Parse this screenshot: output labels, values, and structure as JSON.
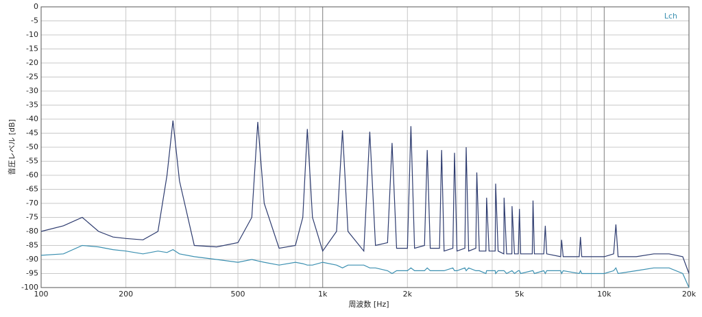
{
  "chart_data": {
    "type": "line",
    "xlabel": "周波数 [Hz]",
    "ylabel": "音圧レベル [dB]",
    "legend": "Lch",
    "legend_color": "#3a8fb0",
    "log_x": true,
    "grid": true,
    "xlim": [
      100,
      20000
    ],
    "ylim": [
      -100,
      0
    ],
    "xticks": [
      100,
      200,
      500,
      {
        "value": 1000,
        "label": "1k"
      },
      {
        "value": 2000,
        "label": "2k"
      },
      {
        "value": 5000,
        "label": "5k"
      },
      {
        "value": 10000,
        "label": "10k"
      },
      {
        "value": 20000,
        "label": "20k"
      }
    ],
    "xminorticks": [
      300,
      400,
      600,
      700,
      800,
      900,
      3000,
      4000,
      6000,
      7000,
      8000,
      9000
    ],
    "xmajorgrid": [
      1000,
      10000
    ],
    "yticks": [
      0,
      -5,
      -10,
      -15,
      -20,
      -25,
      -30,
      -35,
      -40,
      -45,
      -50,
      -55,
      -60,
      -65,
      -70,
      -75,
      -80,
      -85,
      -90,
      -95,
      -100
    ],
    "x": [
      100,
      120,
      140,
      160,
      180,
      200,
      230,
      260,
      280,
      294,
      310,
      350,
      420,
      500,
      560,
      588,
      620,
      700,
      800,
      850,
      882,
      920,
      1000,
      1120,
      1176,
      1230,
      1400,
      1470,
      1540,
      1700,
      1764,
      1830,
      2000,
      2058,
      2120,
      2300,
      2352,
      2410,
      2600,
      2646,
      2700,
      2900,
      2940,
      3000,
      3200,
      3234,
      3300,
      3500,
      3528,
      3600,
      3800,
      3822,
      3900,
      4100,
      4116,
      4200,
      4400,
      4410,
      4500,
      4700,
      4704,
      4800,
      4950,
      4998,
      5050,
      5550,
      5586,
      5650,
      6100,
      6174,
      6250,
      7000,
      7056,
      7150,
      8150,
      8232,
      8320,
      10000,
      10800,
      11000,
      11200,
      13000,
      15000,
      17000,
      19000,
      20000
    ],
    "series": [
      {
        "color": "#2c3a6e",
        "values": [
          -80,
          -78,
          -75,
          -80,
          -82,
          -82.5,
          -83,
          -80,
          -60,
          -40.5,
          -62,
          -85,
          -85.5,
          -84,
          -75,
          -41,
          -70,
          -86,
          -85,
          -75,
          -43.5,
          -75,
          -87,
          -80,
          -44,
          -80,
          -87,
          -44.5,
          -85,
          -84,
          -48.5,
          -86,
          -86,
          -42.5,
          -86,
          -85,
          -51,
          -86,
          -86,
          -51,
          -87,
          -86,
          -52,
          -87,
          -86,
          -50,
          -87,
          -86,
          -59,
          -87,
          -87,
          -68,
          -87,
          -87,
          -63,
          -87,
          -88,
          -68,
          -88,
          -88,
          -71,
          -88,
          -88,
          -72,
          -88,
          -88,
          -69,
          -88,
          -88,
          -78,
          -88,
          -89,
          -83,
          -89,
          -89,
          -82,
          -89,
          -89,
          -88,
          -77.5,
          -89,
          -89,
          -88,
          -88,
          -89,
          -95
        ]
      },
      {
        "color": "#3a8fb0",
        "values": [
          -88.5,
          -88,
          -85,
          -85.5,
          -86.5,
          -87,
          -88,
          -87,
          -87.5,
          -86.5,
          -88,
          -89,
          -90,
          -91,
          -90,
          -90.5,
          -91,
          -92,
          -91,
          -91.5,
          -92,
          -92,
          -91,
          -92,
          -93,
          -92,
          -92,
          -93,
          -93,
          -94,
          -95,
          -94,
          -94,
          -93,
          -94,
          -94,
          -93,
          -94,
          -94,
          -94,
          -94,
          -93,
          -94,
          -94,
          -93,
          -94,
          -93,
          -94,
          -94,
          -94,
          -95,
          -94,
          -94,
          -94,
          -95,
          -94,
          -94,
          -94,
          -95,
          -94,
          -94,
          -95,
          -94,
          -94,
          -95,
          -94,
          -94,
          -95,
          -94,
          -95,
          -94,
          -94,
          -95,
          -94,
          -95,
          -94,
          -95,
          -95,
          -94,
          -93,
          -95,
          -94,
          -93,
          -93,
          -95,
          -100
        ]
      }
    ]
  }
}
